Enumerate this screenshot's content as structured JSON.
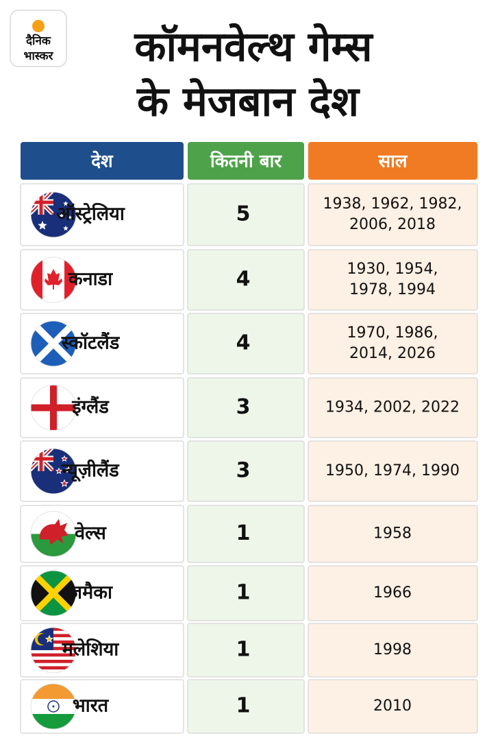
{
  "logo": {
    "line1": "दैनिक",
    "line2": "भास्कर"
  },
  "title": {
    "lines": [
      "कॉमनवेल्थ गेम्स",
      "के मेजबान देश"
    ]
  },
  "table": {
    "headers": [
      "देश",
      "कितनी बार",
      "साल"
    ],
    "rows": [
      {
        "country": "ऑस्ट्रेलिया",
        "times": 5,
        "years": [
          "1938, 1962, 1982,",
          "2006, 2018"
        ]
      },
      {
        "country": "कनाडा",
        "times": 4,
        "years": [
          "1930, 1954,",
          "1978, 1994"
        ]
      },
      {
        "country": "स्कॉटलैंड",
        "times": 4,
        "years": [
          "1970, 1986,",
          "2014, 2026"
        ]
      },
      {
        "country": "इंग्लैंड",
        "times": 3,
        "years": [
          "1934, 2002, 2022"
        ]
      },
      {
        "country": "न्यूज़ीलैंड",
        "times": 3,
        "years": [
          "1950, 1974, 1990"
        ]
      },
      {
        "country": "वेल्स",
        "times": 1,
        "years": [
          "1958"
        ]
      },
      {
        "country": "जमैका",
        "times": 1,
        "years": [
          "1966"
        ]
      },
      {
        "country": "मलेशिया",
        "times": 1,
        "years": [
          "1998"
        ]
      },
      {
        "country": "भारत",
        "times": 1,
        "years": [
          "2010"
        ]
      }
    ]
  }
}
